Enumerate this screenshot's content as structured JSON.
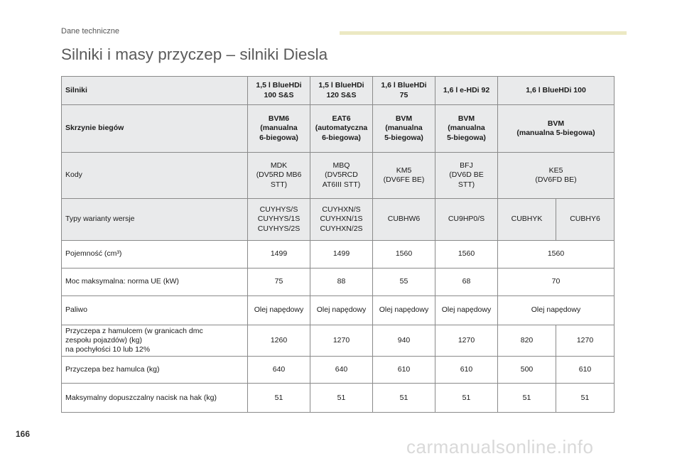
{
  "header": {
    "section": "Dane techniczne",
    "title": "Silniki i masy przyczep – silniki Diesla"
  },
  "table": {
    "rows": [
      {
        "label": "Silniki",
        "cells": [
          "1,5 l BlueHDi\n100 S&S",
          "1,5 l BlueHDi\n120 S&S",
          "1,6 l BlueHDi\n75",
          "1,6 l e-HDi 92",
          "1,6 l BlueHDi 100"
        ]
      },
      {
        "label": "Skrzynie biegów",
        "cells": [
          "BVM6\n(manualna\n6-biegowa)",
          "EAT6\n(automatyczna\n6-biegowa)",
          "BVM\n(manualna\n5-biegowa)",
          "BVM\n(manualna\n5-biegowa)",
          "BVM\n(manualna 5-biegowa)"
        ]
      },
      {
        "label": "Kody",
        "cells": [
          "MDK\n(DV5RD MB6\nSTT)",
          "MBQ\n(DV5RCD\nAT6III STT)",
          "KM5\n(DV6FE BE)",
          "BFJ\n(DV6D BE\nSTT)",
          "KE5\n(DV6FD BE)"
        ]
      },
      {
        "label": "Typy warianty wersje",
        "cells": [
          "CUYHYS/S\nCUYHYS/1S\nCUYHYS/2S",
          "CUYHXN/S\nCUYHXN/1S\nCUYHXN/2S",
          "CUBHW6",
          "CU9HP0/S",
          "CUBHYK",
          "CUBHY6"
        ]
      },
      {
        "label": "Pojemność (cm³)",
        "cells": [
          "1499",
          "1499",
          "1560",
          "1560",
          "1560"
        ]
      },
      {
        "label": "Moc maksymalna: norma UE (kW)",
        "cells": [
          "75",
          "88",
          "55",
          "68",
          "70"
        ]
      },
      {
        "label": "Paliwo",
        "cells": [
          "Olej napędowy",
          "Olej napędowy",
          "Olej napędowy",
          "Olej napędowy",
          "Olej napędowy"
        ]
      },
      {
        "label": "Przyczepa z hamulcem (w granicach dmc\nzespołu pojazdów) (kg)\nna pochyłości 10 lub 12%",
        "cells": [
          "1260",
          "1270",
          "940",
          "1270",
          "820",
          "1270"
        ]
      },
      {
        "label": "Przyczepa bez hamulca (kg)",
        "cells": [
          "640",
          "640",
          "610",
          "610",
          "500",
          "610"
        ]
      },
      {
        "label": "Maksymalny dopuszczalny nacisk na hak (kg)",
        "cells": [
          "51",
          "51",
          "51",
          "51",
          "51",
          "51"
        ]
      }
    ]
  },
  "footer": {
    "page_number": "166",
    "watermark": "carmanualsonline.info"
  }
}
